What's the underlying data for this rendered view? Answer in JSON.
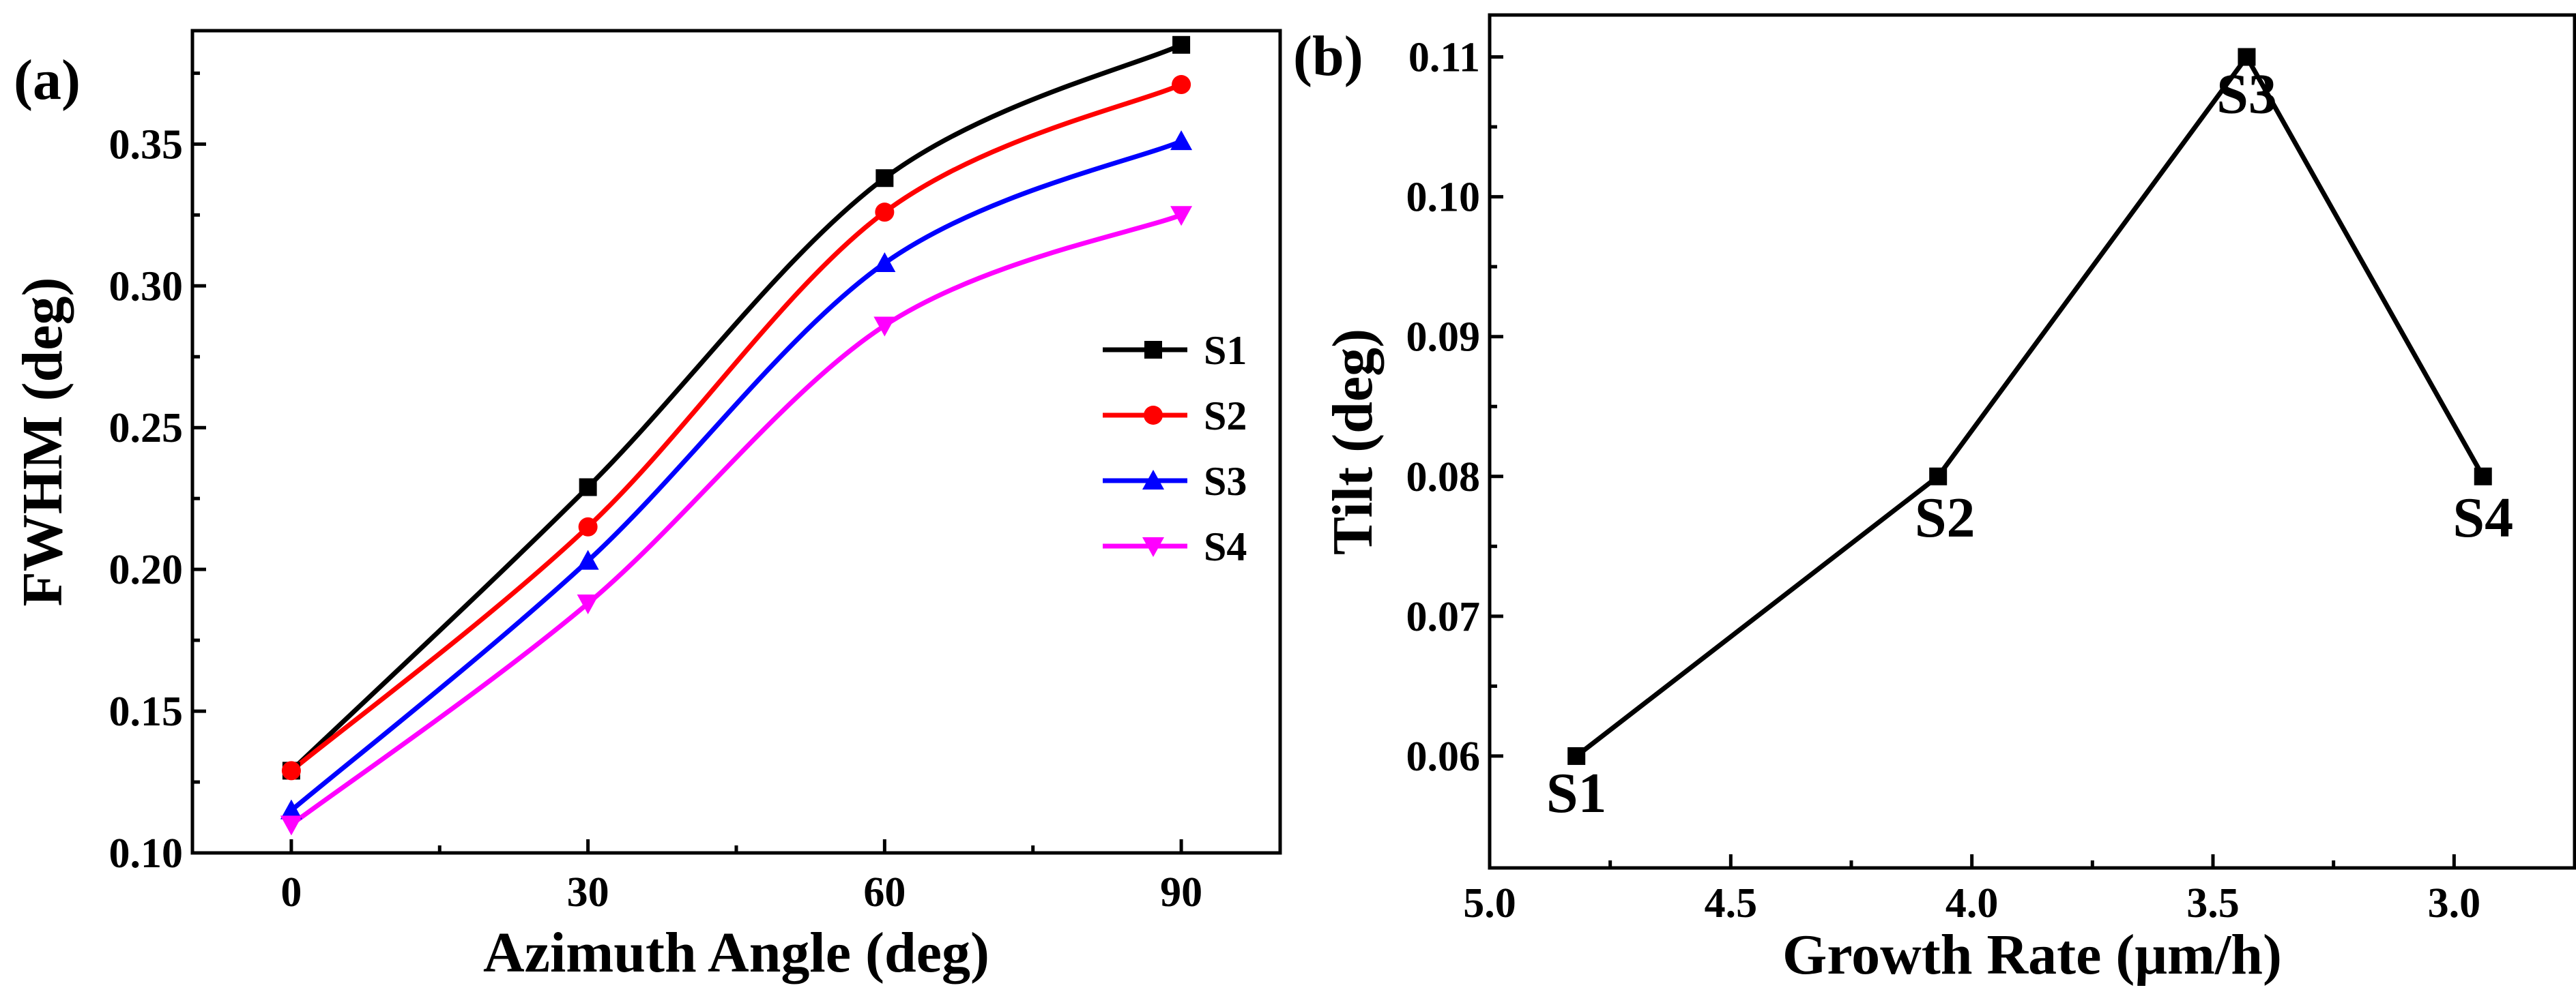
{
  "chart_data": [
    {
      "panel_label": "(a)",
      "type": "line",
      "xlabel": "Azimuth Angle (deg)",
      "ylabel": "FWHM (deg)",
      "x": [
        0,
        30,
        60,
        90
      ],
      "xlim": [
        -10,
        100
      ],
      "ylim": [
        0.1,
        0.39
      ],
      "xticks": [
        0,
        30,
        60,
        90
      ],
      "yticks": [
        0.1,
        0.15,
        0.2,
        0.25,
        0.3,
        0.35
      ],
      "ytick_labels": [
        "0.10",
        "0.15",
        "0.20",
        "0.25",
        "0.30",
        "0.35"
      ],
      "legend_position": "right",
      "series": [
        {
          "name": "S1",
          "values": [
            0.129,
            0.229,
            0.338,
            0.385
          ],
          "color": "#000000",
          "marker": "square"
        },
        {
          "name": "S2",
          "values": [
            0.129,
            0.215,
            0.326,
            0.371
          ],
          "color": "#ff0000",
          "marker": "circle"
        },
        {
          "name": "S3",
          "values": [
            0.115,
            0.203,
            0.308,
            0.351
          ],
          "color": "#0000ff",
          "marker": "triangle-up"
        },
        {
          "name": "S4",
          "values": [
            0.11,
            0.188,
            0.286,
            0.325
          ],
          "color": "#ff00ff",
          "marker": "triangle-down"
        }
      ]
    },
    {
      "panel_label": "(b)",
      "type": "line",
      "xlabel": "Growth Rate (μm/h)",
      "ylabel": "Tilt (deg)",
      "x": [
        4.82,
        4.07,
        3.43,
        2.94
      ],
      "point_labels": [
        "S1",
        "S2",
        "S3",
        "S4"
      ],
      "values": [
        0.06,
        0.08,
        0.11,
        0.08
      ],
      "xlim": [
        5.0,
        2.75
      ],
      "x_reversed": true,
      "ylim": [
        0.052,
        0.113
      ],
      "xticks": [
        5.0,
        4.5,
        4.0,
        3.5,
        3.0
      ],
      "xtick_labels": [
        "5.0",
        "4.5",
        "4.0",
        "3.5",
        "3.0"
      ],
      "yticks": [
        0.06,
        0.07,
        0.08,
        0.09,
        0.1,
        0.11
      ],
      "ytick_labels": [
        "0.06",
        "0.07",
        "0.08",
        "0.09",
        "0.10",
        "0.11"
      ],
      "color": "#000000",
      "marker": "square"
    }
  ]
}
